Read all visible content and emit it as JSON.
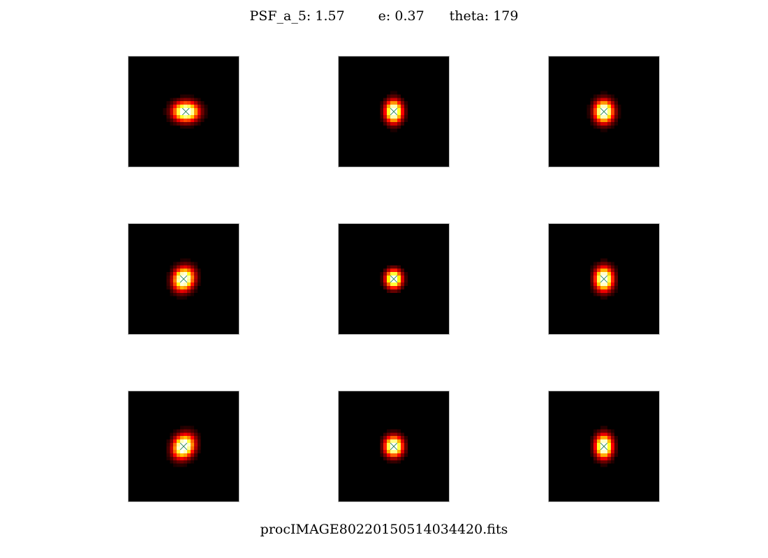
{
  "header": {
    "psf_text": "PSF_a_5: 1.57",
    "e_text": "e: 0.37",
    "theta_text": "theta: 179"
  },
  "footer": {
    "filename": "procIMAGE80220150514034420.fits"
  },
  "chart_data": {
    "type": "heatmap",
    "colormap": "hot",
    "grid": {
      "rows": 3,
      "cols": 3
    },
    "marker": "x",
    "marker_color": "#2e8b57",
    "tile_border_color": "#bfbfbf",
    "psf_stamps": [
      {
        "row": 0,
        "col": 0,
        "cx": 0.52,
        "cy": 0.5,
        "sx": 2.4,
        "sy": 1.8,
        "angle": 0
      },
      {
        "row": 0,
        "col": 1,
        "cx": 0.5,
        "cy": 0.5,
        "sx": 1.6,
        "sy": 2.1,
        "angle": 0
      },
      {
        "row": 0,
        "col": 2,
        "cx": 0.5,
        "cy": 0.5,
        "sx": 1.8,
        "sy": 2.1,
        "angle": 0
      },
      {
        "row": 1,
        "col": 0,
        "cx": 0.5,
        "cy": 0.5,
        "sx": 1.9,
        "sy": 2.2,
        "angle": 25
      },
      {
        "row": 1,
        "col": 1,
        "cx": 0.5,
        "cy": 0.5,
        "sx": 1.5,
        "sy": 1.7,
        "angle": 0
      },
      {
        "row": 1,
        "col": 2,
        "cx": 0.5,
        "cy": 0.5,
        "sx": 1.7,
        "sy": 2.2,
        "angle": 0
      },
      {
        "row": 2,
        "col": 0,
        "cx": 0.5,
        "cy": 0.5,
        "sx": 1.9,
        "sy": 2.3,
        "angle": 30
      },
      {
        "row": 2,
        "col": 1,
        "cx": 0.5,
        "cy": 0.5,
        "sx": 1.7,
        "sy": 1.9,
        "angle": 0
      },
      {
        "row": 2,
        "col": 2,
        "cx": 0.5,
        "cy": 0.5,
        "sx": 1.6,
        "sy": 2.2,
        "angle": 0
      }
    ]
  }
}
